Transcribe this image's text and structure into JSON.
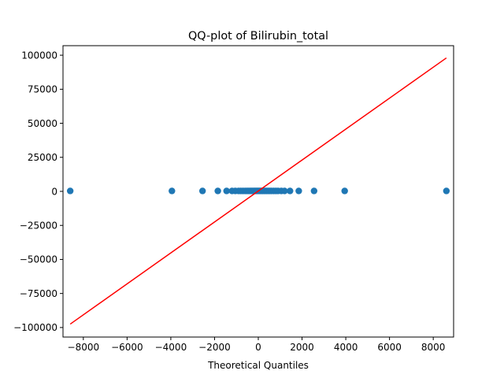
{
  "chart_data": {
    "type": "scatter",
    "title": "QQ-plot of Bilirubin_total",
    "xlabel": "Theoretical Quantiles",
    "ylabel": "",
    "xlim": [
      -8930,
      8930
    ],
    "ylim": [
      -107000,
      107000
    ],
    "xticks": [
      -8000,
      -6000,
      -4000,
      -2000,
      0,
      2000,
      4000,
      6000,
      8000
    ],
    "yticks": [
      -100000,
      -75000,
      -50000,
      -25000,
      0,
      25000,
      50000,
      75000,
      100000
    ],
    "grid": false,
    "series": [
      {
        "kind": "points",
        "color": "#1f77b4",
        "x": [
          -8600,
          -3950,
          -2550,
          -1850,
          -1450,
          -1200,
          -1050,
          -900,
          -800,
          -700,
          -600,
          -520,
          -450,
          -380,
          -320,
          -260,
          -200,
          -150,
          -100,
          -50,
          0,
          50,
          100,
          150,
          200,
          260,
          320,
          380,
          450,
          520,
          600,
          700,
          800,
          900,
          1050,
          1200,
          1450,
          1850,
          2550,
          3950,
          8600
        ],
        "y": [
          300,
          300,
          300,
          300,
          300,
          300,
          300,
          300,
          300,
          300,
          300,
          300,
          300,
          300,
          300,
          300,
          300,
          300,
          300,
          300,
          300,
          300,
          300,
          300,
          300,
          300,
          300,
          300,
          300,
          300,
          300,
          300,
          300,
          300,
          300,
          300,
          300,
          300,
          300,
          300,
          300
        ]
      },
      {
        "kind": "line",
        "color": "#ff0000",
        "x": [
          -8600,
          8600
        ],
        "y": [
          -97500,
          98000
        ]
      }
    ]
  }
}
